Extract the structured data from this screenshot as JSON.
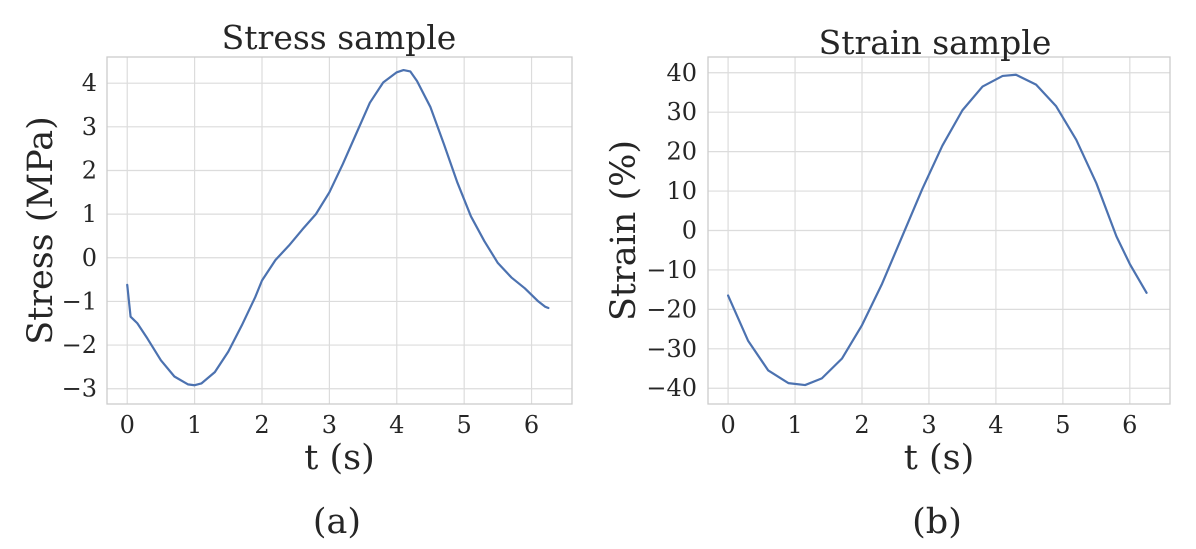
{
  "chart_data": [
    {
      "type": "line",
      "title": "Stress sample",
      "xlabel": "t (s)",
      "ylabel": "Stress (MPa)",
      "caption": "(a)",
      "xlim": [
        -0.3,
        6.6
      ],
      "ylim": [
        -3.35,
        4.6
      ],
      "xticks": [
        0,
        1,
        2,
        3,
        4,
        5,
        6
      ],
      "xtick_labels": [
        "0",
        "1",
        "2",
        "3",
        "4",
        "5",
        "6"
      ],
      "yticks": [
        -3,
        -2,
        -1,
        0,
        1,
        2,
        3,
        4
      ],
      "ytick_labels": [
        "−3",
        "−2",
        "−1",
        "0",
        "1",
        "2",
        "3",
        "4"
      ],
      "grid": true,
      "color": "#4c72b0",
      "series": [
        {
          "x": [
            0,
            0.05,
            0.15,
            0.3,
            0.5,
            0.7,
            0.9,
            1.0,
            1.1,
            1.3,
            1.5,
            1.7,
            1.9,
            2.0,
            2.2,
            2.4,
            2.6,
            2.8,
            3.0,
            3.2,
            3.4,
            3.6,
            3.8,
            4.0,
            4.1,
            4.2,
            4.3,
            4.5,
            4.7,
            4.9,
            5.1,
            5.3,
            5.5,
            5.7,
            5.9,
            6.1,
            6.2,
            6.25
          ],
          "y": [
            -0.62,
            -1.35,
            -1.5,
            -1.85,
            -2.35,
            -2.72,
            -2.9,
            -2.92,
            -2.88,
            -2.62,
            -2.15,
            -1.55,
            -0.9,
            -0.52,
            -0.05,
            0.28,
            0.65,
            1.0,
            1.5,
            2.15,
            2.85,
            3.55,
            4.02,
            4.25,
            4.3,
            4.27,
            4.05,
            3.45,
            2.6,
            1.72,
            0.95,
            0.38,
            -0.12,
            -0.45,
            -0.7,
            -1.0,
            -1.12,
            -1.15
          ]
        }
      ]
    },
    {
      "type": "line",
      "title": "Strain sample",
      "xlabel": "t (s)",
      "ylabel": "Strain (%)",
      "caption": "(b)",
      "xlim": [
        -0.3,
        6.6
      ],
      "ylim": [
        -44,
        44
      ],
      "xticks": [
        0,
        1,
        2,
        3,
        4,
        5,
        6
      ],
      "xtick_labels": [
        "0",
        "1",
        "2",
        "3",
        "4",
        "5",
        "6"
      ],
      "yticks": [
        -40,
        -30,
        -20,
        -10,
        0,
        10,
        20,
        30,
        40
      ],
      "ytick_labels": [
        "−40",
        "−30",
        "−20",
        "−10",
        "0",
        "10",
        "20",
        "30",
        "40"
      ],
      "grid": true,
      "color": "#4c72b0",
      "series": [
        {
          "x": [
            0,
            0.3,
            0.6,
            0.9,
            1.15,
            1.4,
            1.7,
            2.0,
            2.3,
            2.6,
            2.9,
            3.2,
            3.5,
            3.8,
            4.1,
            4.3,
            4.6,
            4.9,
            5.2,
            5.5,
            5.8,
            6.0,
            6.25
          ],
          "y": [
            -16.5,
            -28.0,
            -35.5,
            -38.7,
            -39.2,
            -37.5,
            -32.5,
            -24.0,
            -13.5,
            -1.5,
            10.5,
            21.5,
            30.5,
            36.5,
            39.2,
            39.5,
            37.0,
            31.5,
            23.0,
            12.0,
            -1.5,
            -8.5,
            -15.8
          ]
        }
      ]
    }
  ]
}
